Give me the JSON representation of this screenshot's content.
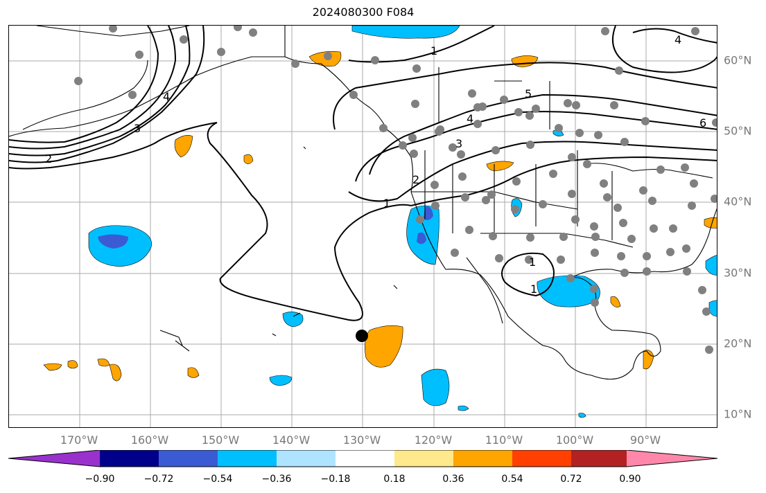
{
  "title": "2024080300 F084",
  "lon_labels": [
    "170°W",
    "160°W",
    "150°W",
    "140°W",
    "130°W",
    "120°W",
    "110°W",
    "100°W",
    "90°W"
  ],
  "lat_labels": [
    "60°N",
    "50°N",
    "40°N",
    "30°N",
    "20°N",
    "10°N"
  ],
  "contour_labels": [
    "1",
    "1",
    "1",
    "1",
    "2",
    "2",
    "3",
    "3",
    "4",
    "4",
    "4",
    "5",
    "6"
  ],
  "colorbar": {
    "colors": [
      "#9932cc",
      "#00008b",
      "#3b5bd5",
      "#00bfff",
      "#aee4ff",
      "#ffffff",
      "#ffe98a",
      "#ffa500",
      "#ff4000",
      "#b22222",
      "#ff88aa"
    ],
    "ticks": [
      "−0.90",
      "−0.72",
      "−0.54",
      "−0.36",
      "−0.18",
      "0.18",
      "0.36",
      "0.54",
      "0.72",
      "0.90"
    ]
  }
}
